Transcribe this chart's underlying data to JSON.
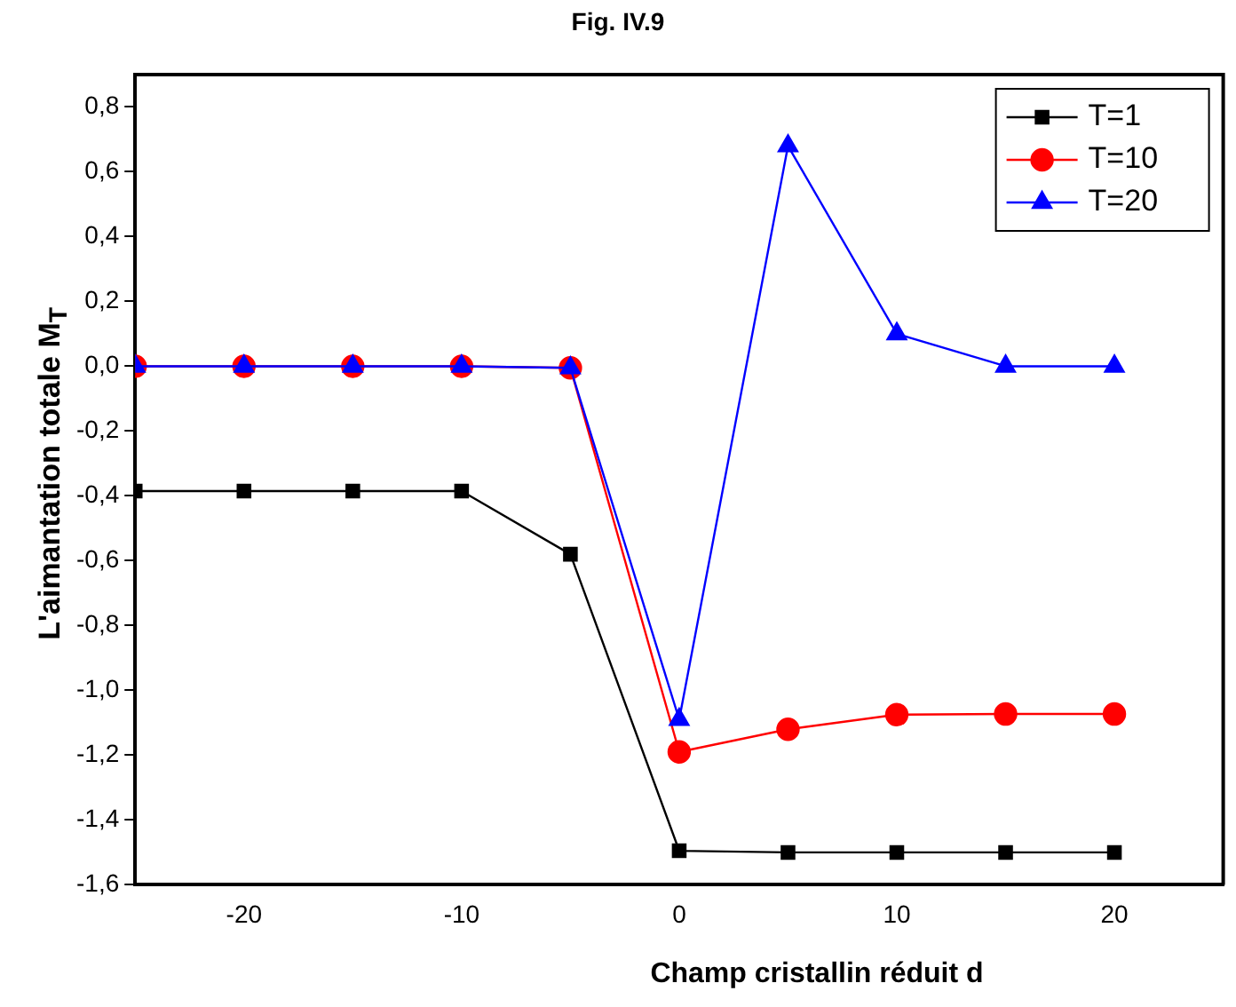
{
  "chart_data": {
    "type": "line",
    "title": "Fig. IV.9",
    "xlabel": "Champ cristallin réduit d",
    "ylabel": "L'aimantation totale M$_{T}$",
    "x": [
      -25,
      -20,
      -15,
      -10,
      -5,
      0,
      5,
      10,
      15,
      20
    ],
    "series": [
      {
        "name": "T=1",
        "color": "#000000",
        "marker": "square",
        "values": [
          -0.385,
          -0.385,
          -0.385,
          -0.385,
          -0.58,
          -1.495,
          -1.5,
          -1.5,
          -1.5,
          -1.5
        ]
      },
      {
        "name": "T=10",
        "color": "#ff0000",
        "marker": "circle",
        "values": [
          0,
          0,
          0,
          0,
          -0.005,
          -1.19,
          -1.12,
          -1.075,
          -1.073,
          -1.073
        ]
      },
      {
        "name": "T=20",
        "color": "#0000ff",
        "marker": "triangle",
        "values": [
          0,
          0,
          0,
          0,
          -0.005,
          -1.09,
          0.68,
          0.1,
          0,
          0
        ]
      }
    ],
    "xlim": [
      -25,
      25
    ],
    "xticks": [
      -20,
      -10,
      0,
      10,
      20
    ],
    "ylim": [
      -1.6,
      0.9
    ],
    "yticks": [
      {
        "value": -1.6,
        "label": "-1,6"
      },
      {
        "value": -1.4,
        "label": "-1,4"
      },
      {
        "value": -1.2,
        "label": "-1,2"
      },
      {
        "value": -1,
        "label": "-1,0"
      },
      {
        "value": -0.8,
        "label": "-0,8"
      },
      {
        "value": -0.6,
        "label": "-0,6"
      },
      {
        "value": -0.4,
        "label": "-0,4"
      },
      {
        "value": -0.2,
        "label": "-0,2"
      },
      {
        "value": 0,
        "label": "0,0"
      },
      {
        "value": 0.2,
        "label": "0,2"
      },
      {
        "value": 0.4,
        "label": "0,4"
      },
      {
        "value": 0.6,
        "label": "0,6"
      },
      {
        "value": 0.8,
        "label": "0,8"
      }
    ],
    "grid": false,
    "legend": "top right",
    "line_style": "solid"
  }
}
